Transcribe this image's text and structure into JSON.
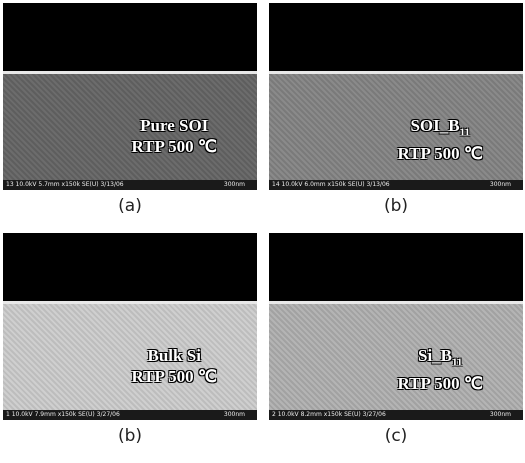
{
  "panels": [
    {
      "label_line1": "Pure SOI",
      "label_line2": "RTP 500 ℃",
      "footer_left": "13 10.0kV 5.7mm x150k SE(U) 3/13/06",
      "footer_right": "300nm",
      "caption": "(a)"
    },
    {
      "label_line1": "SOI_B",
      "label_sub": "11",
      "label_line2": "RTP 500 ℃",
      "footer_left": "14 10.0kV 6.0mm x150k SE(U) 3/13/06",
      "footer_right": "300nm",
      "caption": "(b)"
    },
    {
      "label_line1": "Bulk Si",
      "label_line2": "RTP 500 ℃",
      "footer_left": "1 10.0kV 7.9mm x150k SE(U) 3/27/06",
      "footer_right": "300nm",
      "caption": "(b)"
    },
    {
      "label_line1": "Si_B",
      "label_sub": "11",
      "label_line2": "RTP 500 ℃",
      "footer_left": "2 10.0kV 8.2mm x150k SE(U) 3/27/06",
      "footer_right": "300nm",
      "caption": "(c)"
    }
  ]
}
